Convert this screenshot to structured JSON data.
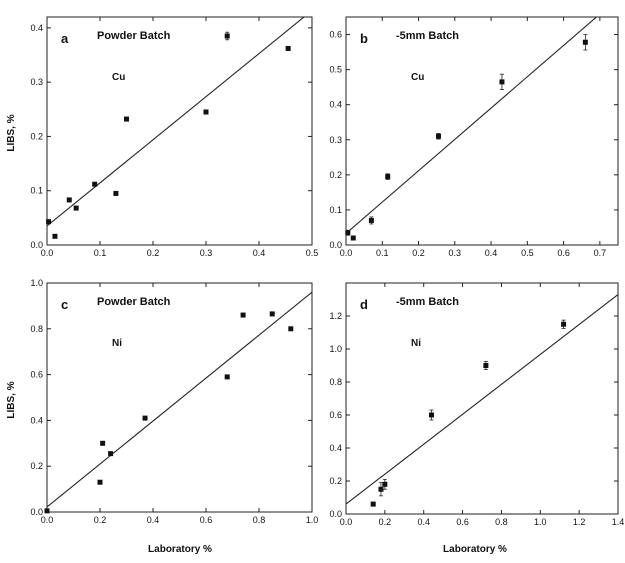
{
  "figure": {
    "ylabel": "LIBS, %",
    "xlabel": "Laboratory %"
  },
  "chart_data": [
    {
      "id": "a",
      "type": "scatter",
      "letter": "a",
      "title": "Powder Batch",
      "element": "Cu",
      "xlim": [
        0,
        0.5
      ],
      "ylim": [
        0,
        0.42
      ],
      "x_ticks": [
        "0.0",
        "0.1",
        "0.2",
        "0.3",
        "0.4",
        "0.5"
      ],
      "y_ticks": [
        "0.0",
        "0.1",
        "0.2",
        "0.3",
        "0.4"
      ],
      "x_tick_values": [
        0,
        0.1,
        0.2,
        0.3,
        0.4,
        0.5
      ],
      "y_tick_values": [
        0,
        0.1,
        0.2,
        0.3,
        0.4
      ],
      "points": [
        {
          "x": 0.003,
          "y": 0.043
        },
        {
          "x": 0.015,
          "y": 0.016
        },
        {
          "x": 0.042,
          "y": 0.083
        },
        {
          "x": 0.055,
          "y": 0.068
        },
        {
          "x": 0.09,
          "y": 0.112
        },
        {
          "x": 0.13,
          "y": 0.095
        },
        {
          "x": 0.15,
          "y": 0.232
        },
        {
          "x": 0.3,
          "y": 0.245
        },
        {
          "x": 0.34,
          "y": 0.385,
          "err": 0.007
        },
        {
          "x": 0.455,
          "y": 0.362
        }
      ],
      "fit_line": [
        {
          "x": 0,
          "y": 0.035
        },
        {
          "x": 0.5,
          "y": 0.432
        }
      ],
      "show_xlabel": false
    },
    {
      "id": "b",
      "type": "scatter",
      "letter": "b",
      "title": "-5mm Batch",
      "element": "Cu",
      "xlim": [
        0,
        0.75
      ],
      "ylim": [
        0,
        0.65
      ],
      "x_ticks": [
        "0.0",
        "0.1",
        "0.2",
        "0.3",
        "0.4",
        "0.5",
        "0.6",
        "0.7"
      ],
      "y_ticks": [
        "0.0",
        "0.1",
        "0.2",
        "0.3",
        "0.4",
        "0.5",
        "0.6"
      ],
      "x_tick_values": [
        0,
        0.1,
        0.2,
        0.3,
        0.4,
        0.5,
        0.6,
        0.7
      ],
      "y_tick_values": [
        0,
        0.1,
        0.2,
        0.3,
        0.4,
        0.5,
        0.6
      ],
      "points": [
        {
          "x": 0.005,
          "y": 0.035,
          "err": 0.007
        },
        {
          "x": 0.02,
          "y": 0.02
        },
        {
          "x": 0.07,
          "y": 0.07,
          "err": 0.01
        },
        {
          "x": 0.115,
          "y": 0.195,
          "err": 0.008
        },
        {
          "x": 0.255,
          "y": 0.31,
          "err": 0.008
        },
        {
          "x": 0.43,
          "y": 0.465,
          "err": 0.022
        },
        {
          "x": 0.66,
          "y": 0.578,
          "err": 0.022
        }
      ],
      "fit_line": [
        {
          "x": 0,
          "y": 0.033
        },
        {
          "x": 0.75,
          "y": 0.703
        }
      ],
      "show_xlabel": false
    },
    {
      "id": "c",
      "type": "scatter",
      "letter": "c",
      "title": "Powder Batch",
      "element": "Ni",
      "xlim": [
        0,
        1.0
      ],
      "ylim": [
        0,
        1.0
      ],
      "x_ticks": [
        "0.0",
        "0.2",
        "0.4",
        "0.6",
        "0.8",
        "1.0"
      ],
      "y_ticks": [
        "0.0",
        "0.2",
        "0.4",
        "0.6",
        "0.8",
        "1.0"
      ],
      "x_tick_values": [
        0,
        0.2,
        0.4,
        0.6,
        0.8,
        1.0
      ],
      "y_tick_values": [
        0,
        0.2,
        0.4,
        0.6,
        0.8,
        1.0
      ],
      "points": [
        {
          "x": 0.0,
          "y": 0.005
        },
        {
          "x": 0.2,
          "y": 0.13
        },
        {
          "x": 0.21,
          "y": 0.3
        },
        {
          "x": 0.24,
          "y": 0.255
        },
        {
          "x": 0.37,
          "y": 0.41
        },
        {
          "x": 0.68,
          "y": 0.59
        },
        {
          "x": 0.74,
          "y": 0.86
        },
        {
          "x": 0.85,
          "y": 0.865
        },
        {
          "x": 0.92,
          "y": 0.8
        }
      ],
      "fit_line": [
        {
          "x": 0,
          "y": 0.022
        },
        {
          "x": 1.0,
          "y": 0.96
        }
      ],
      "show_xlabel": true
    },
    {
      "id": "d",
      "type": "scatter",
      "letter": "d",
      "title": "-5mm Batch",
      "element": "Ni",
      "xlim": [
        0,
        1.4
      ],
      "ylim": [
        0,
        1.4
      ],
      "x_ticks": [
        "0.0",
        "0.2",
        "0.4",
        "0.6",
        "0.8",
        "1.0",
        "1.2",
        "1.4"
      ],
      "y_ticks": [
        "0.0",
        "0.2",
        "0.4",
        "0.6",
        "0.8",
        "1.0",
        "1.2"
      ],
      "x_tick_values": [
        0,
        0.2,
        0.4,
        0.6,
        0.8,
        1.0,
        1.2,
        1.4
      ],
      "y_tick_values": [
        0,
        0.2,
        0.4,
        0.6,
        0.8,
        1.0,
        1.2
      ],
      "points": [
        {
          "x": 0.14,
          "y": 0.06
        },
        {
          "x": 0.18,
          "y": 0.15,
          "err": 0.04
        },
        {
          "x": 0.2,
          "y": 0.18,
          "err": 0.03
        },
        {
          "x": 0.44,
          "y": 0.6,
          "err": 0.03
        },
        {
          "x": 0.72,
          "y": 0.9,
          "err": 0.025
        },
        {
          "x": 1.12,
          "y": 1.15,
          "err": 0.025
        }
      ],
      "fit_line": [
        {
          "x": 0,
          "y": 0.06
        },
        {
          "x": 1.4,
          "y": 1.33
        }
      ],
      "show_xlabel": true
    }
  ]
}
